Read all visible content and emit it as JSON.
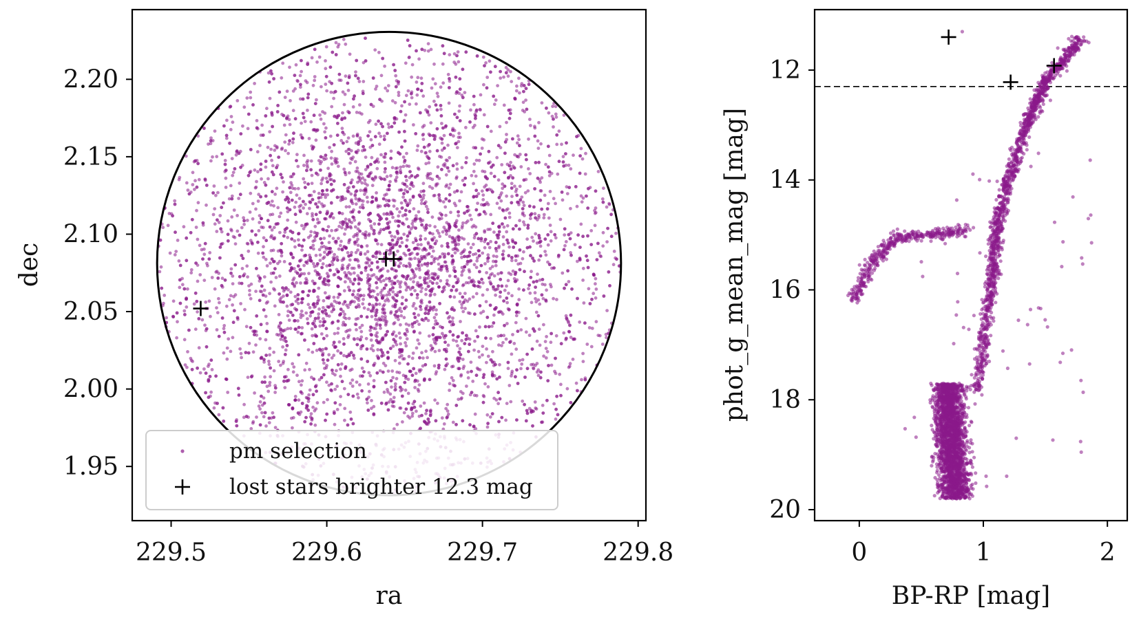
{
  "chart_data": [
    {
      "type": "scatter",
      "title": "",
      "xlabel": "ra",
      "ylabel": "dec",
      "xlim": [
        229.475,
        229.805
      ],
      "ylim": [
        1.915,
        2.245
      ],
      "xticks": [
        "229.5",
        "229.6",
        "229.7",
        "229.8"
      ],
      "yticks": [
        "1.95",
        "2.00",
        "2.05",
        "2.10",
        "2.15",
        "2.20"
      ],
      "grid": false,
      "legend": {
        "placement": "lower-left"
      },
      "selection_circle": {
        "center": [
          229.64,
          2.081
        ],
        "radius": 0.149
      },
      "series": [
        {
          "name": "pm selection",
          "marker": "dot",
          "color": "#8B1A8B",
          "count_estimate": 5200,
          "sample_points": [
            [
              229.64,
              2.083
            ],
            [
              229.62,
              2.06
            ],
            [
              229.66,
              2.1
            ],
            [
              229.6,
              2.12
            ],
            [
              229.68,
              2.05
            ],
            [
              229.55,
              2.15
            ],
            [
              229.72,
              2.16
            ],
            [
              229.58,
              2.02
            ],
            [
              229.7,
              2.0
            ],
            [
              229.52,
              2.08
            ],
            [
              229.76,
              2.09
            ],
            [
              229.64,
              2.2
            ]
          ]
        },
        {
          "name": "lost stars brighter 12.3 mag",
          "marker": "+",
          "color": "#000000",
          "points": [
            [
              229.638,
              2.084
            ],
            [
              229.643,
              2.084
            ],
            [
              229.519,
              2.052
            ]
          ]
        }
      ]
    },
    {
      "type": "scatter",
      "title": "",
      "xlabel": "BP-RP [mag]",
      "ylabel": "phot_g_mean_mag [mag]",
      "xlim": [
        -0.36,
        2.16
      ],
      "ylim": [
        20.2,
        10.9
      ],
      "y_inverted": true,
      "xticks": [
        "0",
        "1",
        "2"
      ],
      "yticks": [
        "12",
        "14",
        "16",
        "18",
        "20"
      ],
      "grid": false,
      "reference_lines": [
        {
          "type": "horizontal",
          "y": 12.3,
          "style": "dashed",
          "color": "#000000"
        }
      ],
      "series": [
        {
          "name": "pm selection",
          "marker": "dot",
          "color": "#8B1A8B",
          "features": {
            "main_sequence_turnoff": {
              "bp_rp": [
                0.6,
                0.95
              ],
              "g": [
                17.8,
                19.8
              ]
            },
            "red_giant_branch": [
              [
                0.95,
                17.8
              ],
              [
                1.05,
                16.2
              ],
              [
                1.1,
                15.0
              ],
              [
                1.2,
                14.0
              ],
              [
                1.35,
                13.0
              ],
              [
                1.5,
                12.2
              ],
              [
                1.8,
                11.4
              ]
            ],
            "horizontal_branch": [
              [
                -0.05,
                16.2
              ],
              [
                0.1,
                15.5
              ],
              [
                0.3,
                15.05
              ],
              [
                0.6,
                15.0
              ],
              [
                0.85,
                14.9
              ]
            ]
          }
        },
        {
          "name": "lost stars brighter 12.3 mag",
          "marker": "+",
          "color": "#000000",
          "points": [
            [
              0.72,
              11.4
            ],
            [
              1.22,
              12.22
            ],
            [
              1.57,
              11.92
            ]
          ]
        }
      ]
    }
  ]
}
